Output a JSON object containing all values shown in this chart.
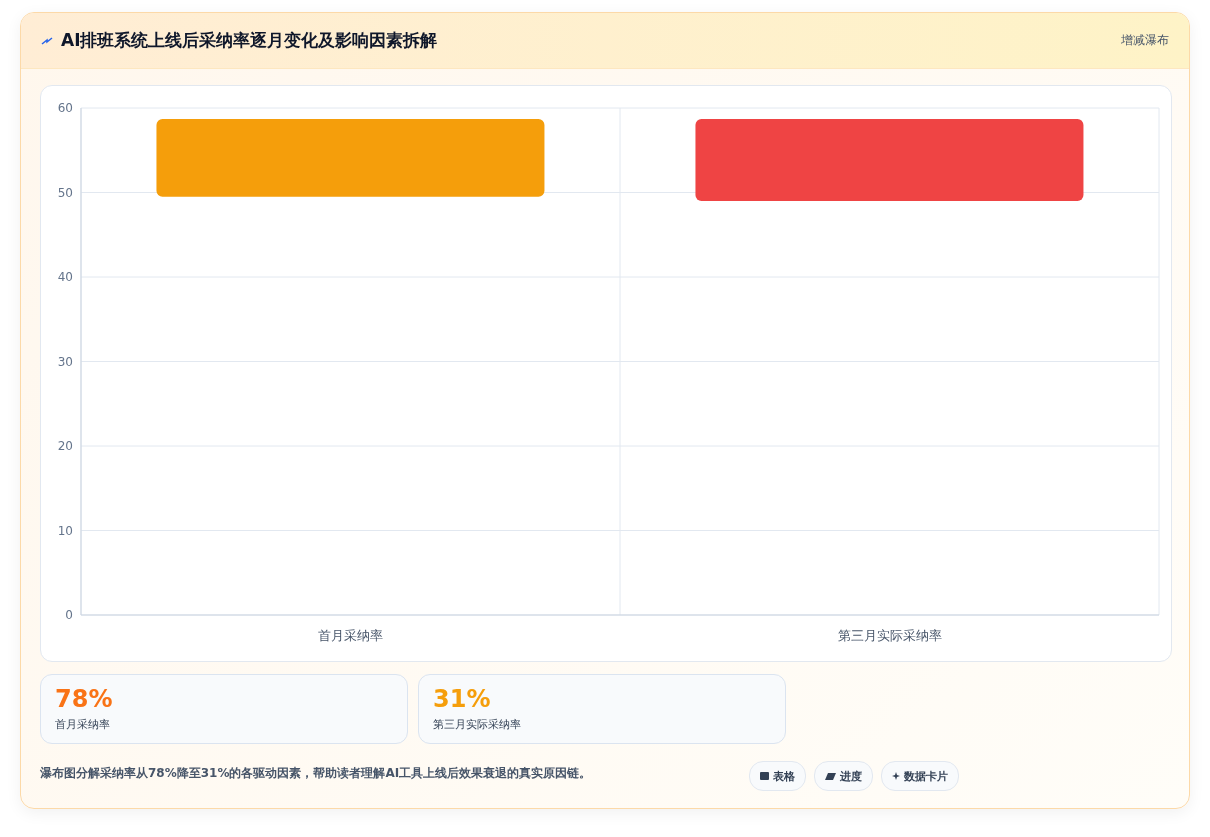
{
  "chart_data": {
    "type": "bar",
    "title": "AI排班系统上线后采纳率逐月变化及影响因素拆解",
    "categories": [
      "首月采纳率",
      "第三月实际采纳率"
    ],
    "values": [
      9.2,
      9.7
    ],
    "base": [
      49.5,
      49
    ],
    "colors": [
      "#f59e0b",
      "#ef4444"
    ],
    "ylim": [
      0,
      60
    ],
    "yticks": [
      0,
      10,
      20,
      30,
      40,
      50,
      60
    ],
    "grid": true,
    "annotations": [
      "增减瀑布",
      "78%",
      "首月采纳率",
      "31%",
      "第三月实际采纳率",
      "瀑布图分解采纳率从78%降至31%的各驱动因素，帮助读者理解AI工具上线后效果衰退的真实原因链。",
      "表格",
      "进度",
      "数据卡片"
    ]
  }
}
